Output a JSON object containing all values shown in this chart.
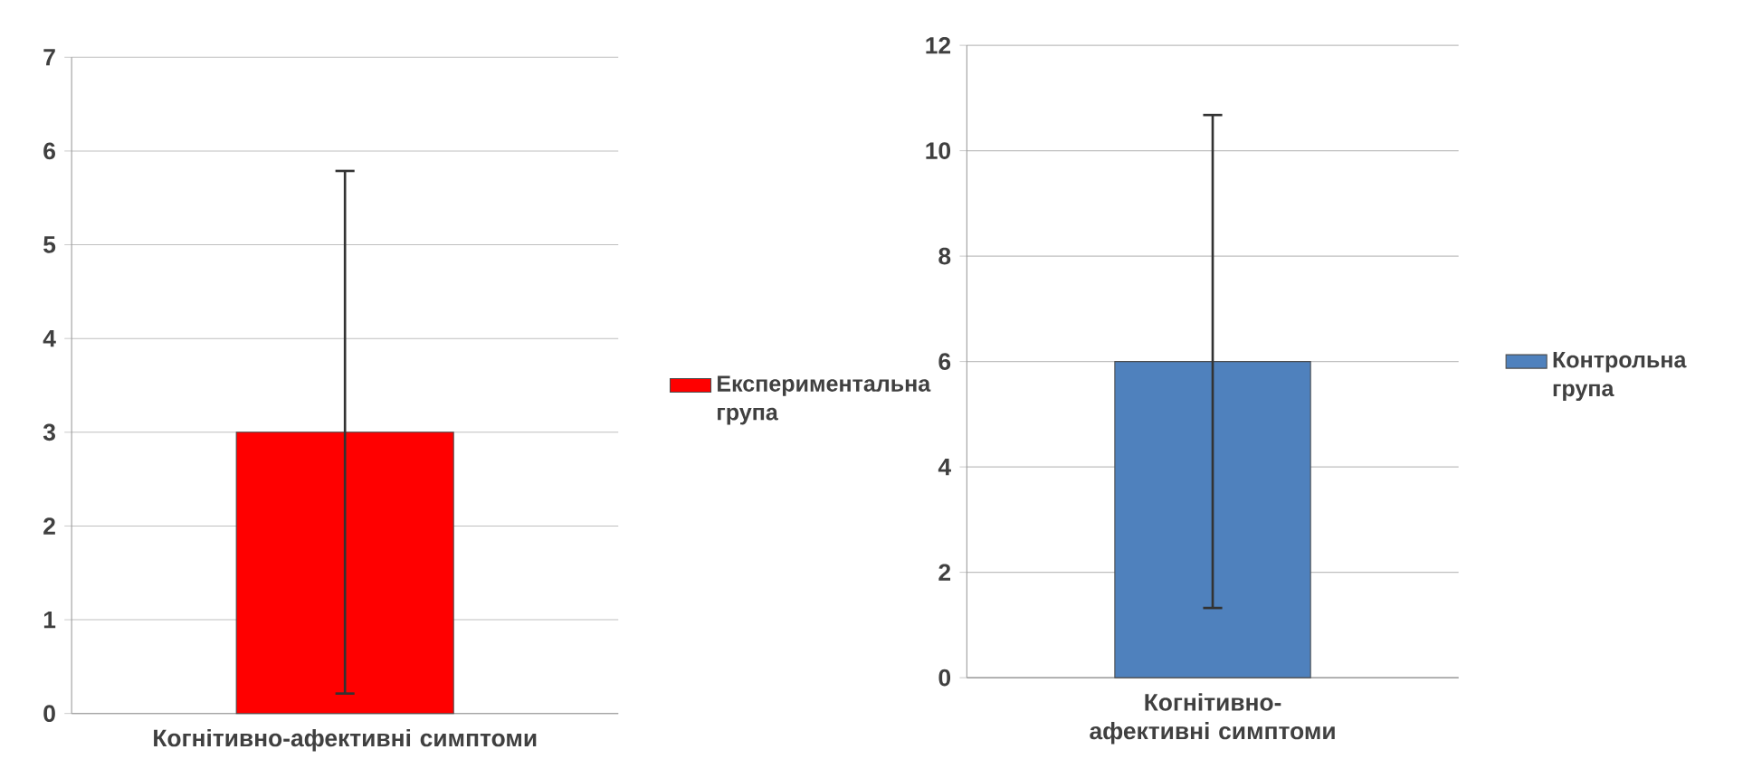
{
  "chart_data": [
    {
      "type": "bar",
      "categories": [
        "Когнітивно-афективні  симптоми"
      ],
      "series": [
        {
          "name": "Експериментальна група",
          "color": "#ff0000",
          "values": [
            3
          ],
          "errors": [
            2.8
          ]
        }
      ],
      "ylim": [
        0,
        7
      ],
      "yticks": [
        0,
        1,
        2,
        3,
        4,
        5,
        6,
        7
      ],
      "grid": "y",
      "legend": "right"
    },
    {
      "type": "bar",
      "categories": [
        "Когнітивно-афективні симптоми"
      ],
      "series": [
        {
          "name": "Контрольна група",
          "color": "#4f81bd",
          "values": [
            6
          ],
          "errors": [
            4.7
          ]
        }
      ],
      "ylim": [
        0,
        12
      ],
      "yticks": [
        0,
        2,
        4,
        6,
        8,
        10,
        12
      ],
      "grid": "y",
      "legend": "right"
    }
  ]
}
